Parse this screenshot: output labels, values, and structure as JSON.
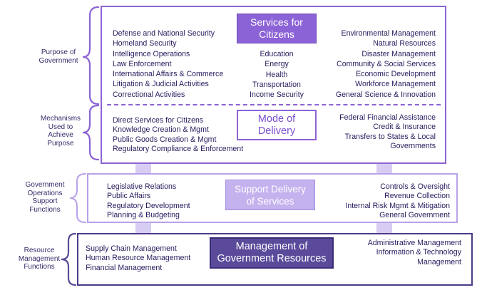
{
  "side_labels": {
    "purpose": [
      "Purpose of",
      "Government"
    ],
    "mechanisms": [
      "Mechanisms",
      "Used to",
      "Achieve",
      "Purpose"
    ],
    "operations": [
      "Government",
      "Operations",
      "Support",
      "Functions"
    ],
    "resource": [
      "Resource",
      "Management",
      "Functions"
    ]
  },
  "services": {
    "title": [
      "Services for",
      "Citizens"
    ],
    "left": [
      "Defense and National Security",
      "Homeland Security",
      "Intelligence Operations",
      "Law Enforcement",
      "International Affairs & Commerce",
      "Litigation & Judicial Activities",
      "Correctional Activities"
    ],
    "center": [
      "Education",
      "Energy",
      "Health",
      "Transportation",
      "Income Security"
    ],
    "right": [
      "Environmental Management",
      "Natural Resources",
      "Disaster Management",
      "Community & Social Services",
      "Economic Development",
      "Workforce Management",
      "General Science & Innovation"
    ]
  },
  "mode": {
    "title": [
      "Mode of",
      "Delivery"
    ],
    "left": [
      "Direct Services for Citizens",
      "Knowledge Creation & Mgmt",
      "Public Goods Creation & Mgmt",
      "Regulatory Compliance & Enforcement"
    ],
    "right": [
      "Federal Financial Assistance",
      "Credit & Insurance",
      "Transfers to States & Local",
      "Governments"
    ]
  },
  "support": {
    "title": [
      "Support Delivery",
      "of Services"
    ],
    "left": [
      "Legislative Relations",
      "Public Affairs",
      "Regulatory Development",
      "Planning & Budgeting"
    ],
    "right": [
      "Controls & Oversight",
      "Revenue Collection",
      "Internal Risk Mgmt & Mitigation",
      "General Government"
    ]
  },
  "management": {
    "title": [
      "Management of",
      "Government Resources"
    ],
    "left": [
      "Supply Chain Management",
      "Human Resource Management",
      "Financial Management"
    ],
    "right": [
      "Administrative Management",
      "Information & Technology",
      "Management"
    ]
  },
  "colors": {
    "primary_purple": "#8c63d6",
    "light_purple": "#c4b2ee",
    "dark_purple": "#5b4a9a",
    "text": "#2a1a5e"
  }
}
